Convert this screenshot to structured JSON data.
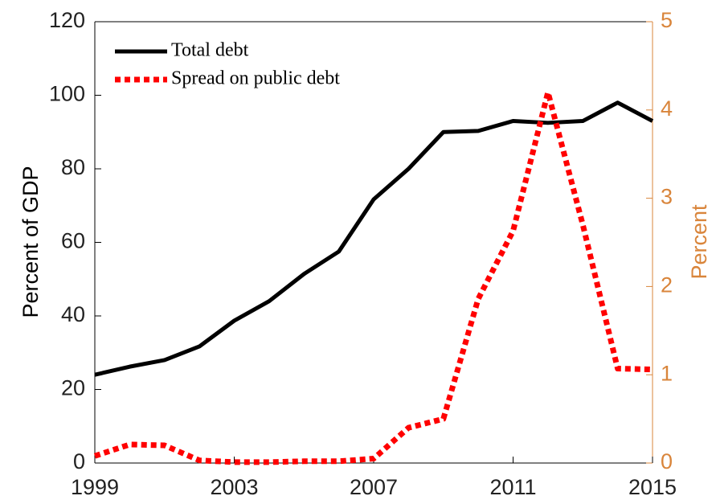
{
  "chart_data": {
    "type": "line",
    "x": [
      1999,
      2000,
      2001,
      2002,
      2003,
      2004,
      2005,
      2006,
      2007,
      2008,
      2009,
      2010,
      2011,
      2012,
      2013,
      2014,
      2015
    ],
    "xlim": [
      1999,
      2015
    ],
    "xticks": [
      1999,
      2003,
      2007,
      2011,
      2015
    ],
    "ylabel": "Percent of GDP",
    "ylim": [
      0,
      120
    ],
    "yticks": [
      0,
      20,
      40,
      60,
      80,
      100,
      120
    ],
    "y2label": "Percent",
    "y2lim": [
      0,
      5
    ],
    "y2ticks": [
      0,
      1,
      2,
      3,
      4,
      5
    ],
    "y2color": "#d9853b",
    "legend": "upper left",
    "series": [
      {
        "name": "Total debt",
        "color": "#000000",
        "style": "solid",
        "values": [
          24,
          26.2,
          28,
          31.7,
          38.7,
          44,
          51.4,
          57.5,
          71.7,
          80,
          90,
          90.3,
          93,
          92.5,
          93,
          98,
          93
        ]
      },
      {
        "name": "Spread on public debt",
        "color": "#ff0000",
        "style": "dotted",
        "axis": "y2",
        "values": [
          0.08,
          0.21,
          0.2,
          0.03,
          0.01,
          0.01,
          0.02,
          0.02,
          0.05,
          0.4,
          0.5,
          1.86,
          2.63,
          4.2,
          2.7,
          1.07,
          1.06
        ]
      }
    ]
  }
}
